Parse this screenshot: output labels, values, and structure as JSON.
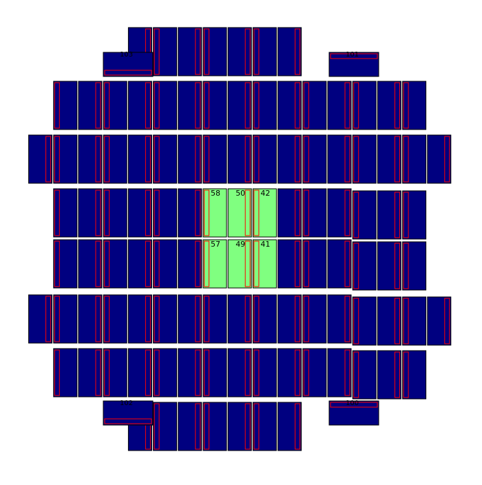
{
  "colors": {
    "ccd_fill": "#000080",
    "ccd_selected_fill": "#80ff80",
    "outline": "#000000",
    "amp_outline": "#ff0000",
    "label": "#000000",
    "background": "#ffffff"
  },
  "selected_labels": [
    "58",
    "50",
    "42",
    "57",
    "49",
    "41"
  ],
  "corner_labels": {
    "top_left": "103",
    "top_right": "101",
    "bottom_left": "102",
    "bottom_right": "100"
  },
  "visible_labels": {
    "r0": [
      "58",
      "50",
      "42"
    ],
    "r1": [
      "57",
      "49",
      "41"
    ],
    "tl": "103",
    "tr": "101",
    "bl": "102",
    "br": "100"
  }
}
